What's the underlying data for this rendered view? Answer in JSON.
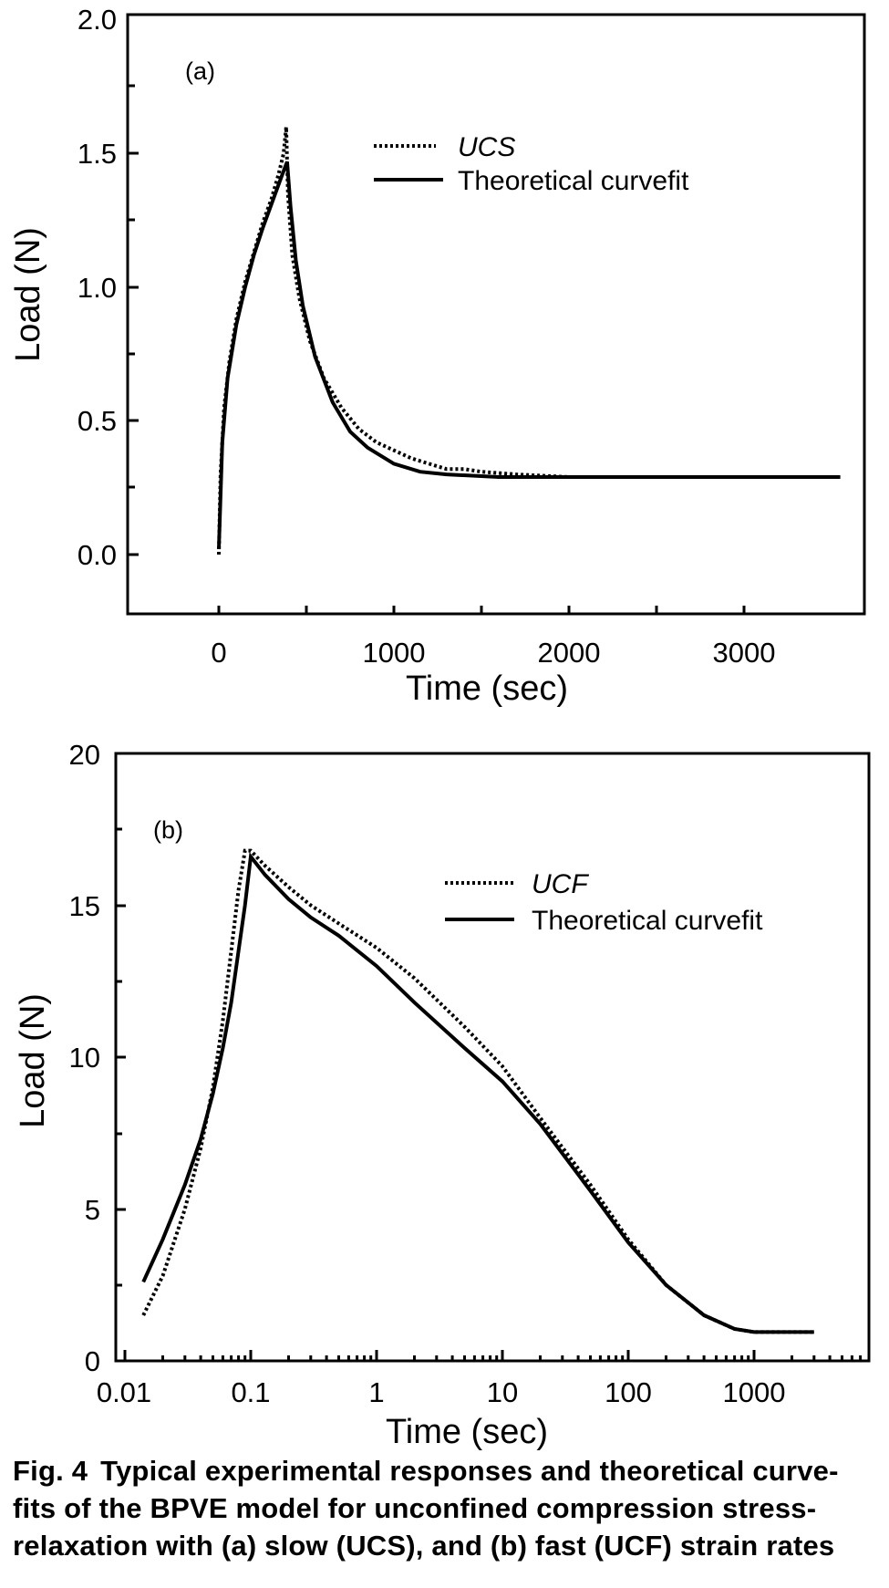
{
  "figure": {
    "caption": {
      "label": "Fig. 4",
      "lines": [
        "Typical experimental responses and theoretical curve-",
        "fits of the BPVE model for unconfined compression stress-",
        "relaxation with (a) slow (UCS), and (b) fast (UCF) strain rates"
      ]
    }
  },
  "chart_data": [
    {
      "type": "line",
      "panel_label": "(a)",
      "xlabel": "Time (sec)",
      "ylabel": "Load (N)",
      "xscale": "linear",
      "xlim": [
        -500,
        3700
      ],
      "ylim": [
        -0.25,
        2.0
      ],
      "xticks": [
        0,
        1000,
        2000,
        3000
      ],
      "xtick_labels": [
        "0",
        "1000",
        "2000",
        "3000"
      ],
      "yticks": [
        0.0,
        0.5,
        1.0,
        1.5,
        2.0
      ],
      "ytick_labels": [
        "0.0",
        "0.5",
        "1.0",
        "1.5",
        "2.0"
      ],
      "grid": false,
      "legend_position": "top-right",
      "series": [
        {
          "name": "UCS",
          "style": "dotted",
          "color": "#000000",
          "points": [
            [
              0,
              0.0
            ],
            [
              10,
              0.3
            ],
            [
              30,
              0.55
            ],
            [
              60,
              0.72
            ],
            [
              100,
              0.88
            ],
            [
              150,
              1.02
            ],
            [
              200,
              1.13
            ],
            [
              250,
              1.24
            ],
            [
              300,
              1.33
            ],
            [
              340,
              1.42
            ],
            [
              370,
              1.5
            ],
            [
              385,
              1.6
            ],
            [
              395,
              1.35
            ],
            [
              420,
              1.12
            ],
            [
              460,
              0.96
            ],
            [
              520,
              0.8
            ],
            [
              600,
              0.66
            ],
            [
              700,
              0.55
            ],
            [
              800,
              0.47
            ],
            [
              900,
              0.42
            ],
            [
              1000,
              0.39
            ],
            [
              1100,
              0.36
            ],
            [
              1200,
              0.34
            ],
            [
              1300,
              0.32
            ],
            [
              1400,
              0.32
            ],
            [
              1500,
              0.31
            ],
            [
              1700,
              0.3
            ],
            [
              2000,
              0.29
            ],
            [
              2500,
              0.29
            ],
            [
              3000,
              0.29
            ],
            [
              3500,
              0.29
            ]
          ]
        },
        {
          "name": "Theoretical curvefit",
          "style": "solid",
          "color": "#000000",
          "points": [
            [
              0,
              0.02
            ],
            [
              20,
              0.42
            ],
            [
              50,
              0.66
            ],
            [
              100,
              0.86
            ],
            [
              150,
              1.0
            ],
            [
              200,
              1.12
            ],
            [
              250,
              1.22
            ],
            [
              300,
              1.31
            ],
            [
              350,
              1.4
            ],
            [
              390,
              1.47
            ],
            [
              410,
              1.3
            ],
            [
              440,
              1.1
            ],
            [
              480,
              0.93
            ],
            [
              550,
              0.74
            ],
            [
              650,
              0.57
            ],
            [
              750,
              0.46
            ],
            [
              850,
              0.4
            ],
            [
              1000,
              0.34
            ],
            [
              1150,
              0.31
            ],
            [
              1300,
              0.3
            ],
            [
              1600,
              0.29
            ],
            [
              2000,
              0.29
            ],
            [
              2500,
              0.29
            ],
            [
              3000,
              0.29
            ],
            [
              3550,
              0.29
            ]
          ]
        }
      ]
    },
    {
      "type": "line",
      "panel_label": "(b)",
      "xlabel": "Time (sec)",
      "ylabel": "Load (N)",
      "xscale": "log",
      "xlim": [
        0.01,
        8000
      ],
      "ylim": [
        0,
        20
      ],
      "xticks": [
        0.01,
        0.1,
        1,
        10,
        100,
        1000
      ],
      "xtick_labels": [
        "0.01",
        "0.1",
        "1",
        "10",
        "100",
        "1000"
      ],
      "yticks": [
        0,
        5,
        10,
        15,
        20
      ],
      "ytick_labels": [
        "0",
        "5",
        "10",
        "15",
        "20"
      ],
      "grid": false,
      "legend_position": "top-right",
      "series": [
        {
          "name": "UCF",
          "style": "dotted",
          "color": "#000000",
          "points": [
            [
              0.014,
              1.5
            ],
            [
              0.02,
              2.8
            ],
            [
              0.03,
              5.0
            ],
            [
              0.04,
              7.0
            ],
            [
              0.05,
              9.0
            ],
            [
              0.06,
              11.2
            ],
            [
              0.07,
              13.5
            ],
            [
              0.08,
              15.5
            ],
            [
              0.09,
              16.8
            ],
            [
              0.1,
              16.8
            ],
            [
              0.13,
              16.3
            ],
            [
              0.2,
              15.6
            ],
            [
              0.3,
              15.0
            ],
            [
              0.5,
              14.4
            ],
            [
              1.0,
              13.6
            ],
            [
              2.0,
              12.6
            ],
            [
              5.0,
              11.0
            ],
            [
              10,
              9.7
            ],
            [
              20,
              8.0
            ],
            [
              50,
              5.8
            ],
            [
              100,
              4.0
            ],
            [
              200,
              2.5
            ],
            [
              400,
              1.5
            ],
            [
              700,
              1.05
            ],
            [
              1000,
              0.95
            ],
            [
              2000,
              0.95
            ],
            [
              3000,
              0.95
            ]
          ]
        },
        {
          "name": "Theoretical curvefit",
          "style": "solid",
          "color": "#000000",
          "points": [
            [
              0.014,
              2.6
            ],
            [
              0.02,
              4.0
            ],
            [
              0.03,
              5.8
            ],
            [
              0.04,
              7.3
            ],
            [
              0.05,
              8.8
            ],
            [
              0.06,
              10.3
            ],
            [
              0.07,
              11.8
            ],
            [
              0.08,
              13.5
            ],
            [
              0.09,
              15.0
            ],
            [
              0.1,
              16.6
            ],
            [
              0.13,
              16.0
            ],
            [
              0.2,
              15.2
            ],
            [
              0.3,
              14.6
            ],
            [
              0.5,
              14.0
            ],
            [
              1.0,
              13.0
            ],
            [
              2.0,
              11.8
            ],
            [
              5.0,
              10.3
            ],
            [
              10,
              9.2
            ],
            [
              20,
              7.8
            ],
            [
              50,
              5.6
            ],
            [
              100,
              3.9
            ],
            [
              200,
              2.5
            ],
            [
              400,
              1.5
            ],
            [
              700,
              1.05
            ],
            [
              1000,
              0.95
            ],
            [
              2000,
              0.95
            ],
            [
              3000,
              0.95
            ]
          ]
        }
      ]
    }
  ]
}
